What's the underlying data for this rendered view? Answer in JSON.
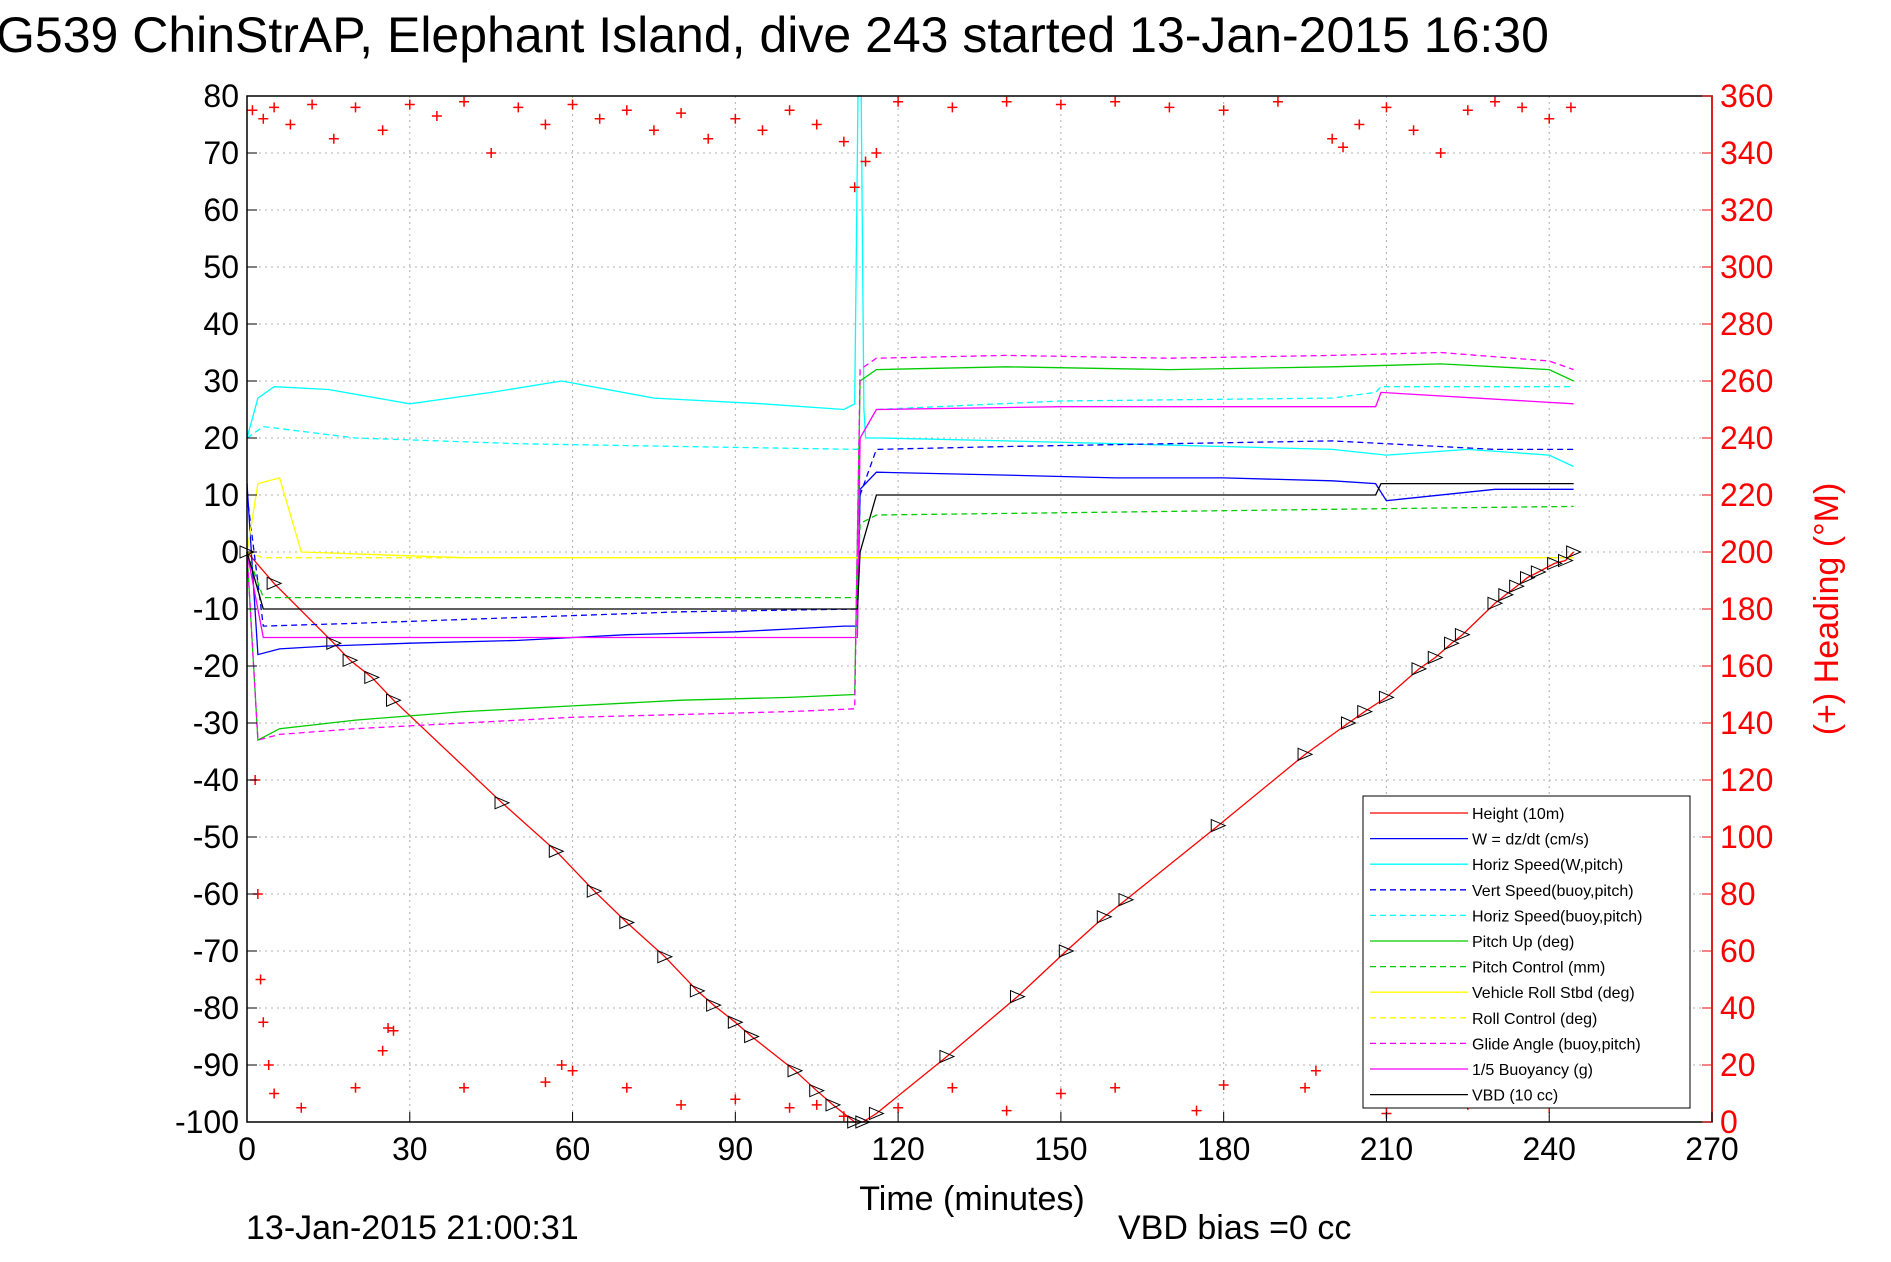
{
  "chart_data": {
    "type": "line",
    "title": "G539 ChinStrAP, Elephant Island, dive 243 started 13-Jan-2015 16:30",
    "xlabel": "Time (minutes)",
    "ylabel": "",
    "ylabel_right": "(+) Heading (°M)",
    "xlim": [
      0,
      270
    ],
    "ylim": [
      -100,
      80
    ],
    "ylim_right": [
      0,
      360
    ],
    "x_ticks": [
      "0",
      "30",
      "60",
      "90",
      "120",
      "150",
      "180",
      "210",
      "240",
      "270"
    ],
    "y_ticks": [
      "80",
      "70",
      "60",
      "50",
      "40",
      "30",
      "20",
      "10",
      "0",
      "-10",
      "-20",
      "-30",
      "-40",
      "-50",
      "-60",
      "-70",
      "-80",
      "-90",
      "-100"
    ],
    "y_ticks_right": [
      "360",
      "340",
      "320",
      "300",
      "280",
      "260",
      "240",
      "220",
      "200",
      "180",
      "160",
      "140",
      "120",
      "100",
      "80",
      "60",
      "40",
      "20",
      "0"
    ],
    "grid": true,
    "legend_position": "bottom-right",
    "footer_left": "13-Jan-2015 21:00:31",
    "footer_right": "VBD bias =0 cc",
    "series": [
      {
        "name": "Height (10m)",
        "color": "#ff0000",
        "dash": "solid",
        "x": [
          0,
          5,
          16,
          19,
          23,
          27,
          47,
          57,
          64,
          70,
          77,
          83,
          86,
          90,
          93,
          101,
          105,
          108,
          112,
          113.5,
          116,
          129,
          142,
          151,
          158,
          162,
          179,
          195,
          203,
          206,
          210,
          216,
          219,
          222,
          224,
          230,
          232,
          234,
          236,
          238,
          241,
          243,
          244.5
        ],
        "y": [
          0,
          -5.5,
          -16,
          -19,
          -22,
          -26,
          -44,
          -52.5,
          -59.5,
          -65,
          -71,
          -77,
          -79.5,
          -82.5,
          -85,
          -91,
          -94.5,
          -97,
          -100,
          -100,
          -98.5,
          -88.5,
          -78,
          -70,
          -64,
          -61,
          -48,
          -35.5,
          -30,
          -28,
          -25.5,
          -20.5,
          -18.5,
          -16,
          -14.5,
          -9,
          -7.5,
          -6,
          -4.5,
          -3.5,
          -2,
          -1.5,
          0
        ]
      },
      {
        "name": "W = dz/dt (cm/s)",
        "color": "#0000ff",
        "dash": "solid",
        "x": [
          0,
          2,
          6,
          15,
          30,
          50,
          70,
          90,
          100,
          110,
          112.5,
          113,
          116,
          140,
          160,
          180,
          200,
          208,
          210,
          230,
          244.5
        ],
        "y": [
          12,
          -18,
          -17,
          -16.5,
          -16,
          -15.5,
          -14.5,
          -14,
          -13.5,
          -13,
          -13,
          11,
          14,
          13.5,
          13,
          13,
          12.5,
          12,
          9,
          11,
          11
        ]
      },
      {
        "name": "Horiz Speed(W,pitch)",
        "color": "#00ffff",
        "dash": "solid",
        "x": [
          0,
          2,
          5,
          15,
          30,
          45,
          58,
          75,
          95,
          110,
          112,
          112.6,
          113.2,
          113.7,
          114,
          117,
          140,
          160,
          180,
          200,
          210,
          225,
          240,
          244.5
        ],
        "y": [
          20,
          27,
          29,
          28.5,
          26,
          28,
          30,
          27,
          26,
          25,
          26,
          80,
          80,
          25,
          20,
          20,
          19.5,
          19,
          18.5,
          18,
          17,
          18,
          17,
          15
        ]
      },
      {
        "name": "Vert Speed(buoy,pitch)",
        "color": "#0000ff",
        "dash": "dashed",
        "x": [
          0,
          3,
          20,
          50,
          80,
          112.5,
          113,
          116,
          140,
          170,
          200,
          210,
          230,
          244.5
        ],
        "y": [
          10,
          -13,
          -12.5,
          -11.5,
          -10.5,
          -10,
          10,
          18,
          18.5,
          19,
          19.5,
          19,
          18,
          18
        ]
      },
      {
        "name": "Horiz Speed(buoy,pitch)",
        "color": "#00ffff",
        "dash": "dashed",
        "x": [
          0,
          3,
          20,
          50,
          80,
          112.5,
          113,
          116,
          150,
          200,
          208,
          209,
          244.5
        ],
        "y": [
          20,
          22,
          20,
          19,
          18.5,
          18,
          20,
          25,
          26.5,
          27,
          28,
          29,
          29
        ]
      },
      {
        "name": "Pitch Up (deg)",
        "color": "#00cc00",
        "dash": "solid",
        "x": [
          0,
          2,
          6,
          20,
          40,
          60,
          80,
          100,
          112,
          113,
          116,
          140,
          170,
          200,
          220,
          240,
          244.5
        ],
        "y": [
          0,
          -33,
          -31,
          -29.5,
          -28,
          -27,
          -26,
          -25.5,
          -25,
          30,
          32,
          32.5,
          32,
          32.5,
          33,
          32,
          30
        ]
      },
      {
        "name": "Pitch Control (mm)",
        "color": "#00cc00",
        "dash": "dashed",
        "x": [
          0,
          3,
          20,
          60,
          112.5,
          113,
          116,
          160,
          200,
          244.5
        ],
        "y": [
          0,
          -8,
          -8,
          -8,
          -8,
          5,
          6.5,
          7,
          7.5,
          8
        ]
      },
      {
        "name": "Vehicle Roll Stbd (deg)",
        "color": "#ffff00",
        "dash": "solid",
        "x": [
          0,
          2,
          6,
          10,
          40,
          80,
          112,
          116,
          160,
          200,
          240,
          244.5
        ],
        "y": [
          0,
          12,
          13,
          0,
          -1,
          -1,
          -1,
          -1,
          -1,
          -1,
          -1,
          -1
        ]
      },
      {
        "name": "Roll Control (deg)",
        "color": "#ffff00",
        "dash": "dashed",
        "x": [
          0,
          3,
          60,
          112,
          116,
          244.5
        ],
        "y": [
          0,
          -1,
          -1,
          -1,
          -1,
          -1
        ]
      },
      {
        "name": "Glide Angle (buoy,pitch)",
        "color": "#ff00ff",
        "dash": "dashed",
        "x": [
          0,
          2,
          6,
          20,
          40,
          60,
          80,
          100,
          112,
          113,
          116,
          140,
          170,
          200,
          220,
          240,
          244.5
        ],
        "y": [
          0,
          -33,
          -32,
          -31,
          -30,
          -29,
          -28.5,
          -28,
          -27.5,
          32,
          34,
          34.5,
          34,
          34.5,
          35,
          33.5,
          32
        ]
      },
      {
        "name": "1/5 Buoyancy (g)",
        "color": "#ff00ff",
        "dash": "solid",
        "x": [
          0,
          3,
          20,
          60,
          112.5,
          113,
          116,
          150,
          208,
          209,
          244.5
        ],
        "y": [
          0,
          -15,
          -15,
          -15,
          -15,
          20,
          25,
          25.5,
          25.5,
          28,
          26
        ]
      },
      {
        "name": "VBD (10 cc)",
        "color": "#000000",
        "dash": "solid",
        "x": [
          0,
          3,
          112.5,
          113,
          116,
          150,
          208,
          209,
          244.5
        ],
        "y": [
          0,
          -10,
          -10,
          0,
          10,
          10,
          10,
          12,
          12
        ]
      },
      {
        "name": "Heading",
        "color": "#ff0000",
        "axis": "right",
        "marker": "+",
        "x": [
          1,
          3,
          5,
          8,
          12,
          16,
          20,
          25,
          30,
          35,
          40,
          45,
          50,
          55,
          60,
          65,
          70,
          75,
          80,
          85,
          90,
          95,
          100,
          105,
          110,
          112,
          114,
          116,
          120,
          130,
          140,
          150,
          160,
          170,
          180,
          190,
          200,
          202,
          205,
          210,
          215,
          220,
          225,
          230,
          235,
          240,
          244,
          1.5,
          2,
          2.5,
          3,
          4,
          5,
          10,
          20,
          25,
          26,
          27,
          40,
          55,
          58,
          60,
          70,
          80,
          90,
          100,
          105,
          110,
          120,
          130,
          140,
          150,
          160,
          175,
          180,
          195,
          197,
          210,
          225,
          240
        ],
        "y": [
          355,
          352,
          356,
          350,
          357,
          345,
          356,
          348,
          357,
          353,
          358,
          340,
          356,
          350,
          357,
          352,
          355,
          348,
          354,
          345,
          352,
          348,
          355,
          350,
          344,
          328,
          337,
          340,
          358,
          356,
          358,
          357,
          358,
          356,
          355,
          358,
          345,
          342,
          350,
          356,
          348,
          340,
          355,
          358,
          356,
          352,
          356,
          120,
          80,
          50,
          35,
          20,
          10,
          5,
          12,
          25,
          33,
          32,
          12,
          14,
          20,
          18,
          12,
          6,
          8,
          5,
          6,
          2,
          5,
          12,
          4,
          10,
          12,
          4,
          13,
          12,
          18,
          3,
          6,
          5
        ]
      }
    ]
  }
}
